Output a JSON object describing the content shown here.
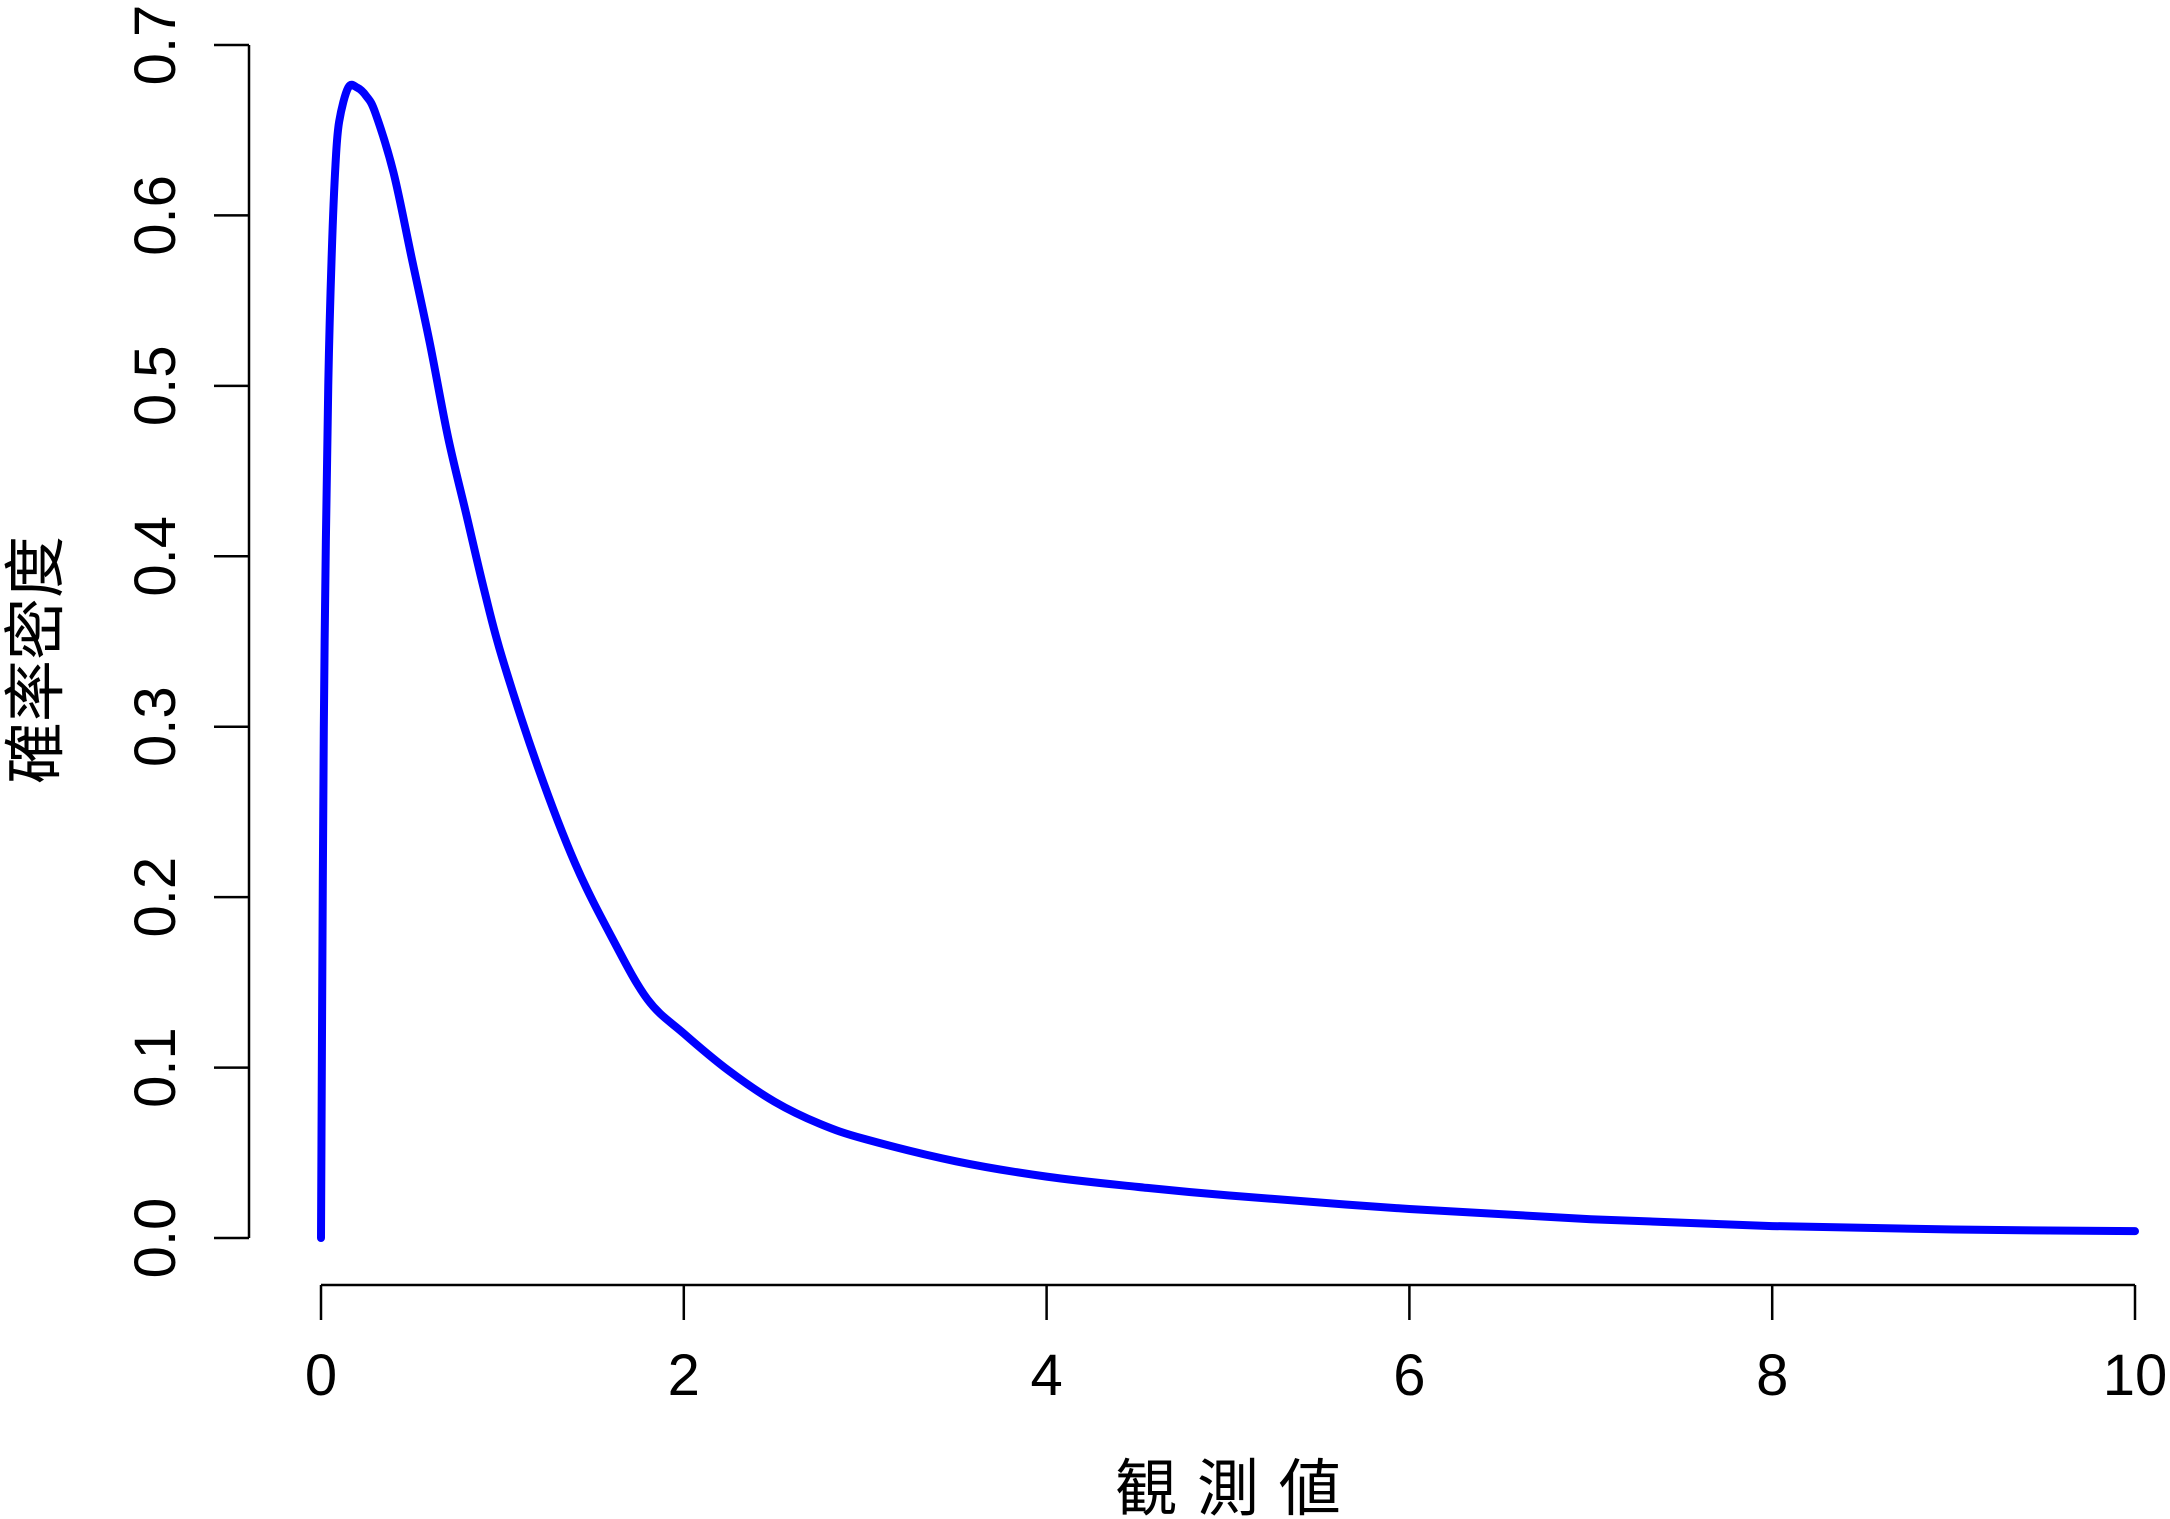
{
  "chart_data": {
    "type": "line",
    "title": "",
    "xlabel": "観 測 値",
    "ylabel": "確率密度",
    "xlim": [
      0,
      10
    ],
    "ylim": [
      0,
      0.7
    ],
    "x_ticks": [
      "0",
      "2",
      "4",
      "6",
      "8",
      "10"
    ],
    "y_ticks": [
      "0.0",
      "0.1",
      "0.2",
      "0.3",
      "0.4",
      "0.5",
      "0.6",
      "0.7"
    ],
    "grid": false,
    "series": [
      {
        "color": "#0000ff",
        "x": [
          0.0,
          0.01,
          0.02,
          0.04,
          0.06,
          0.08,
          0.1,
          0.15,
          0.2,
          0.25,
          0.3,
          0.4,
          0.5,
          0.6,
          0.7,
          0.8,
          0.9,
          1.0,
          1.2,
          1.4,
          1.6,
          1.8,
          2.0,
          2.25,
          2.5,
          2.75,
          3.0,
          3.5,
          4.0,
          4.5,
          5.0,
          6.0,
          7.0,
          8.0,
          9.0,
          10.0
        ],
        "y": [
          0.0,
          0.21,
          0.35,
          0.5,
          0.58,
          0.63,
          0.655,
          0.675,
          0.675,
          0.67,
          0.66,
          0.625,
          0.575,
          0.525,
          0.47,
          0.425,
          0.38,
          0.34,
          0.275,
          0.22,
          0.177,
          0.14,
          0.12,
          0.098,
          0.08,
          0.067,
          0.058,
          0.045,
          0.036,
          0.03,
          0.025,
          0.017,
          0.011,
          0.007,
          0.005,
          0.004
        ]
      }
    ]
  }
}
